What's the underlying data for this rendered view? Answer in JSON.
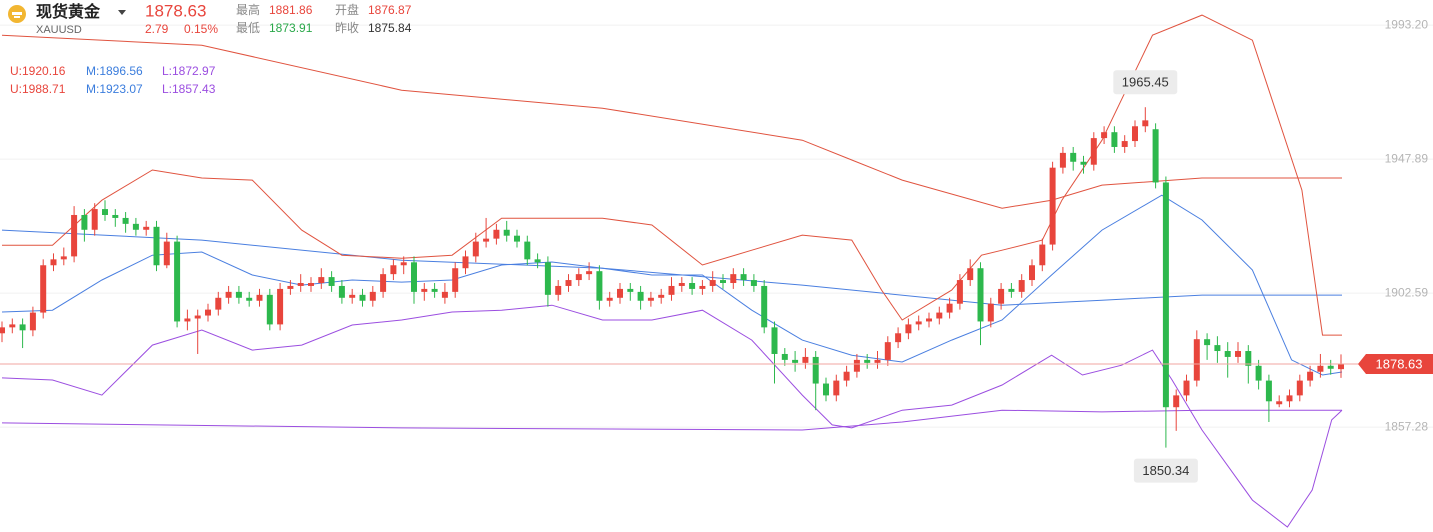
{
  "chart_data": {
    "type": "candlestick",
    "title": "现货黄金",
    "subtitle": "XAUUSD",
    "price": 1878.63,
    "change": 2.79,
    "change_pct": {
      "value": 0.15,
      "label": "0.15%"
    },
    "quote_color": "#e8453c",
    "stats": [
      {
        "name": "最高",
        "value": 1881.86,
        "color": "#e8453c"
      },
      {
        "name": "开盘",
        "value": 1876.87,
        "color": "#e8453c"
      },
      {
        "name": "最低",
        "value": 1873.91,
        "color": "#2aa84a"
      },
      {
        "name": "昨收",
        "value": 1875.84,
        "color": "#333333"
      }
    ],
    "band_legend": [
      [
        {
          "text": "U:1920.16",
          "color": "#e8453c"
        },
        {
          "text": "M:1896.56",
          "color": "#3b7ddd"
        },
        {
          "text": "L:1872.97",
          "color": "#9b4de0"
        }
      ],
      [
        {
          "text": "U:1988.71",
          "color": "#e8453c"
        },
        {
          "text": "M:1923.07",
          "color": "#3b7ddd"
        },
        {
          "text": "L:1857.43",
          "color": "#9b4de0"
        }
      ]
    ],
    "up_color": "#e8453c",
    "down_color": "#2db84d",
    "ylim": [
      1821.8,
      2001.7
    ],
    "yticks": [
      {
        "value": 1993.2,
        "label": "1993.20"
      },
      1947.89,
      1902.59,
      1857.28
    ],
    "grid": true,
    "price_line": 1878.63,
    "ohlc": [
      [
        1889,
        1893,
        1886,
        1891
      ],
      [
        1891,
        1894,
        1889,
        1892
      ],
      [
        1892,
        1894,
        1884,
        1890
      ],
      [
        1890,
        1898,
        1888,
        1896
      ],
      [
        1896,
        1914,
        1894,
        1912
      ],
      [
        1912,
        1916,
        1910,
        1914
      ],
      [
        1914,
        1918,
        1912,
        1915
      ],
      [
        1915,
        1932,
        1913,
        1929
      ],
      [
        1929,
        1931,
        1920,
        1924
      ],
      [
        1924,
        1933,
        1922,
        1931
      ],
      [
        1931,
        1934,
        1927,
        1929
      ],
      [
        1929,
        1931,
        1925,
        1928
      ],
      [
        1928,
        1930,
        1923,
        1926
      ],
      [
        1926,
        1928,
        1922,
        1924
      ],
      [
        1924,
        1927,
        1922,
        1925
      ],
      [
        1925,
        1927,
        1910,
        1912
      ],
      [
        1912,
        1923,
        1911,
        1920
      ],
      [
        1920,
        1922,
        1891,
        1893
      ],
      [
        1893,
        1897,
        1890,
        1894
      ],
      [
        1894,
        1897,
        1882,
        1895
      ],
      [
        1895,
        1899,
        1893,
        1897
      ],
      [
        1897,
        1903,
        1895,
        1901
      ],
      [
        1901,
        1905,
        1899,
        1903
      ],
      [
        1903,
        1905,
        1899,
        1901
      ],
      [
        1901,
        1903,
        1898,
        1900
      ],
      [
        1900,
        1904,
        1898,
        1902
      ],
      [
        1902,
        1904,
        1890,
        1892
      ],
      [
        1892,
        1906,
        1890,
        1904
      ],
      [
        1904,
        1907,
        1902,
        1905
      ],
      [
        1905,
        1909,
        1903,
        1906
      ],
      [
        1905,
        1908,
        1903,
        1906
      ],
      [
        1906,
        1911,
        1904,
        1908
      ],
      [
        1908,
        1910,
        1903,
        1905
      ],
      [
        1905,
        1907,
        1899,
        1901
      ],
      [
        1901,
        1904,
        1899,
        1902
      ],
      [
        1902,
        1904,
        1898,
        1900
      ],
      [
        1900,
        1905,
        1898,
        1903
      ],
      [
        1903,
        1911,
        1901,
        1909
      ],
      [
        1909,
        1914,
        1907,
        1912
      ],
      [
        1912,
        1915,
        1909,
        1913
      ],
      [
        1913,
        1915,
        1899,
        1903
      ],
      [
        1903,
        1906,
        1900,
        1904
      ],
      [
        1904,
        1906,
        1901,
        1903
      ],
      [
        1901,
        1906,
        1899,
        1903
      ],
      [
        1903,
        1913,
        1901,
        1911
      ],
      [
        1911,
        1917,
        1909,
        1915
      ],
      [
        1915,
        1923,
        1913,
        1920
      ],
      [
        1920,
        1928,
        1918,
        1921
      ],
      [
        1921,
        1926,
        1919,
        1924
      ],
      [
        1924,
        1927,
        1920,
        1922
      ],
      [
        1922,
        1924,
        1918,
        1920
      ],
      [
        1920,
        1922,
        1912,
        1914
      ],
      [
        1914,
        1916,
        1911,
        1913
      ],
      [
        1913,
        1915,
        1898,
        1902
      ],
      [
        1902,
        1907,
        1900,
        1905
      ],
      [
        1905,
        1909,
        1903,
        1907
      ],
      [
        1907,
        1911,
        1905,
        1909
      ],
      [
        1909,
        1913,
        1907,
        1910
      ],
      [
        1910,
        1912,
        1897,
        1900
      ],
      [
        1900,
        1903,
        1898,
        1901
      ],
      [
        1901,
        1906,
        1899,
        1904
      ],
      [
        1904,
        1906,
        1900,
        1903
      ],
      [
        1903,
        1905,
        1897,
        1900
      ],
      [
        1900,
        1903,
        1898,
        1901
      ],
      [
        1901,
        1904,
        1899,
        1902
      ],
      [
        1902,
        1908,
        1900,
        1905
      ],
      [
        1905,
        1908,
        1903,
        1906
      ],
      [
        1906,
        1908,
        1902,
        1904
      ],
      [
        1904,
        1907,
        1902,
        1905
      ],
      [
        1905,
        1910,
        1903,
        1907
      ],
      [
        1907,
        1909,
        1904,
        1906
      ],
      [
        1906,
        1911,
        1904,
        1909
      ],
      [
        1909,
        1911,
        1905,
        1907
      ],
      [
        1907,
        1909,
        1903,
        1905
      ],
      [
        1905,
        1907,
        1889,
        1891
      ],
      [
        1891,
        1893,
        1872,
        1882
      ],
      [
        1882,
        1884,
        1878,
        1880
      ],
      [
        1880,
        1883,
        1876,
        1879
      ],
      [
        1879,
        1884,
        1877,
        1881
      ],
      [
        1881,
        1883,
        1863,
        1872
      ],
      [
        1872,
        1874,
        1866,
        1868
      ],
      [
        1868,
        1875,
        1866,
        1873
      ],
      [
        1873,
        1878,
        1871,
        1876
      ],
      [
        1876,
        1882,
        1874,
        1880
      ],
      [
        1880,
        1882,
        1877,
        1879
      ],
      [
        1879,
        1883,
        1877,
        1880
      ],
      [
        1880,
        1888,
        1878,
        1886
      ],
      [
        1886,
        1891,
        1884,
        1889
      ],
      [
        1889,
        1894,
        1887,
        1892
      ],
      [
        1892,
        1895,
        1890,
        1893
      ],
      [
        1893,
        1896,
        1891,
        1894
      ],
      [
        1894,
        1898,
        1892,
        1896
      ],
      [
        1896,
        1901,
        1894,
        1899
      ],
      [
        1899,
        1909,
        1897,
        1907
      ],
      [
        1907,
        1914,
        1905,
        1911
      ],
      [
        1911,
        1913,
        1885,
        1893
      ],
      [
        1893,
        1901,
        1891,
        1899
      ],
      [
        1899,
        1906,
        1897,
        1904
      ],
      [
        1904,
        1906,
        1901,
        1903
      ],
      [
        1903,
        1909,
        1901,
        1907
      ],
      [
        1907,
        1914,
        1905,
        1912
      ],
      [
        1912,
        1921,
        1910,
        1919
      ],
      [
        1919,
        1947,
        1917,
        1945
      ],
      [
        1945,
        1952,
        1943,
        1950
      ],
      [
        1950,
        1952,
        1944,
        1947
      ],
      [
        1947,
        1949,
        1943,
        1946
      ],
      [
        1946,
        1957,
        1944,
        1955
      ],
      [
        1955,
        1959,
        1953,
        1957
      ],
      [
        1957,
        1959,
        1950,
        1952
      ],
      [
        1952,
        1956,
        1950,
        1954
      ],
      [
        1954,
        1961,
        1952,
        1959
      ],
      [
        1959,
        1965.45,
        1957,
        1961
      ],
      [
        1958,
        1960,
        1938,
        1940
      ],
      [
        1940,
        1942,
        1850.34,
        1864
      ],
      [
        1864,
        1870,
        1856,
        1868
      ],
      [
        1868,
        1875,
        1866,
        1873
      ],
      [
        1873,
        1890,
        1871,
        1887
      ],
      [
        1887,
        1889,
        1880,
        1885
      ],
      [
        1885,
        1888,
        1879,
        1883
      ],
      [
        1883,
        1886,
        1874,
        1881
      ],
      [
        1881,
        1886,
        1879,
        1883
      ],
      [
        1883,
        1885,
        1872,
        1878
      ],
      [
        1878,
        1880,
        1870,
        1873
      ],
      [
        1873,
        1875,
        1859,
        1866
      ],
      [
        1865,
        1868,
        1864,
        1866
      ],
      [
        1866,
        1870,
        1864,
        1868
      ],
      [
        1868,
        1875,
        1866,
        1873
      ],
      [
        1873,
        1878,
        1871,
        1876
      ],
      [
        1876,
        1882,
        1874,
        1878
      ],
      [
        1878,
        1880,
        1875,
        1877
      ],
      [
        1876.87,
        1881.86,
        1873.91,
        1878.63
      ]
    ],
    "bands": [
      {
        "color": "#e0533f",
        "x": [
          0,
          19.4,
          38.8,
          58.3,
          77.7,
          82.5,
          87.4,
          97.1,
          101.9,
          106.8,
          116.5,
          130.1
        ],
        "values": [
          1989.8,
          1986.4,
          1971.2,
          1965.1,
          1954.3,
          1947.6,
          1940.8,
          1931.3,
          1934.0,
          1939.1,
          1941.5,
          1941.5
        ]
      },
      {
        "color": "#4a7fe0",
        "x": [
          0,
          19.4,
          38.8,
          58.3,
          77.7,
          97.1,
          106.8,
          116.5,
          130.1
        ],
        "values": [
          1923.9,
          1920.5,
          1913.7,
          1911.0,
          1905.3,
          1898.5,
          1900.2,
          1901.9,
          1901.9
        ]
      },
      {
        "color": "#9b4ee0",
        "x": [
          0,
          38.8,
          77.7,
          87.4,
          97.1,
          106.8,
          116.5,
          130.1
        ],
        "values": [
          1858.7,
          1857.0,
          1856.3,
          1859.0,
          1863.0,
          1862.4,
          1863.0,
          1863.0
        ]
      },
      {
        "color": "#e0533f",
        "x": [
          0,
          4.9,
          9.7,
          14.6,
          19.4,
          24.3,
          29.1,
          33,
          38.8,
          43.7,
          48.5,
          58.3,
          63.1,
          68,
          72.8,
          77.7,
          82.5,
          85.4,
          87.4,
          92.2,
          95.1,
          97.1,
          101,
          102.9,
          106.8,
          111.7,
          116.5,
          121.4,
          126.2,
          128.2,
          130.1
        ],
        "values": [
          1918.8,
          1918.8,
          1934.0,
          1944.2,
          1941.5,
          1940.8,
          1923.9,
          1915.4,
          1914.4,
          1915.4,
          1927.9,
          1927.9,
          1925.6,
          1912.1,
          1917.1,
          1922.2,
          1920.5,
          1903.6,
          1893.5,
          1903.6,
          1915.4,
          1917.1,
          1920.5,
          1934.0,
          1954.3,
          1989.8,
          1996.6,
          1988.1,
          1937.4,
          1888.4,
          1888.4
        ]
      },
      {
        "color": "#4a7fe0",
        "x": [
          0,
          4.9,
          9.7,
          14.6,
          19.4,
          24.3,
          29.1,
          34,
          38.8,
          43.7,
          48.5,
          53.4,
          58.3,
          63.1,
          68,
          72.8,
          77.7,
          82.5,
          87.4,
          92.2,
          97.1,
          101.9,
          106.8,
          112.6,
          116.5,
          121.4,
          125.2,
          128.2,
          130.1
        ],
        "values": [
          1896.2,
          1896.8,
          1907.0,
          1915.4,
          1916.5,
          1908.7,
          1905.3,
          1907.0,
          1906.3,
          1907.0,
          1912.1,
          1913.1,
          1911.0,
          1908.7,
          1908.7,
          1896.8,
          1886.7,
          1881.6,
          1879.3,
          1886.7,
          1893.5,
          1908.7,
          1923.9,
          1935.7,
          1927.3,
          1910.4,
          1880.0,
          1874.9,
          1875.9
        ]
      },
      {
        "color": "#9b4ee0",
        "x": [
          0,
          4.9,
          9.7,
          14.6,
          19.4,
          24.3,
          29.1,
          34,
          38.8,
          43.7,
          48.5,
          53.4,
          58.3,
          63.1,
          68,
          72.8,
          77.7,
          80.6,
          82.5,
          87.4,
          92.2,
          97.1,
          101.9,
          104.9,
          108.7,
          111.7,
          113.6,
          116.5,
          121.4,
          124.8,
          127.2,
          129.1,
          130.1
        ],
        "values": [
          1873.9,
          1873.2,
          1868.1,
          1885.0,
          1890.1,
          1883.3,
          1885.0,
          1891.8,
          1893.5,
          1896.2,
          1896.8,
          1898.5,
          1893.5,
          1893.5,
          1896.8,
          1886.7,
          1868.1,
          1858.0,
          1857.0,
          1863.0,
          1864.7,
          1871.5,
          1881.6,
          1874.9,
          1878.2,
          1883.3,
          1873.2,
          1856.3,
          1832.6,
          1823.5,
          1836.0,
          1859.7,
          1863.0
        ]
      }
    ],
    "annotations": [
      {
        "x": 111,
        "y": 1965.45,
        "position": "above"
      },
      {
        "x": 113,
        "y": 1850.34,
        "position": "below"
      }
    ]
  }
}
